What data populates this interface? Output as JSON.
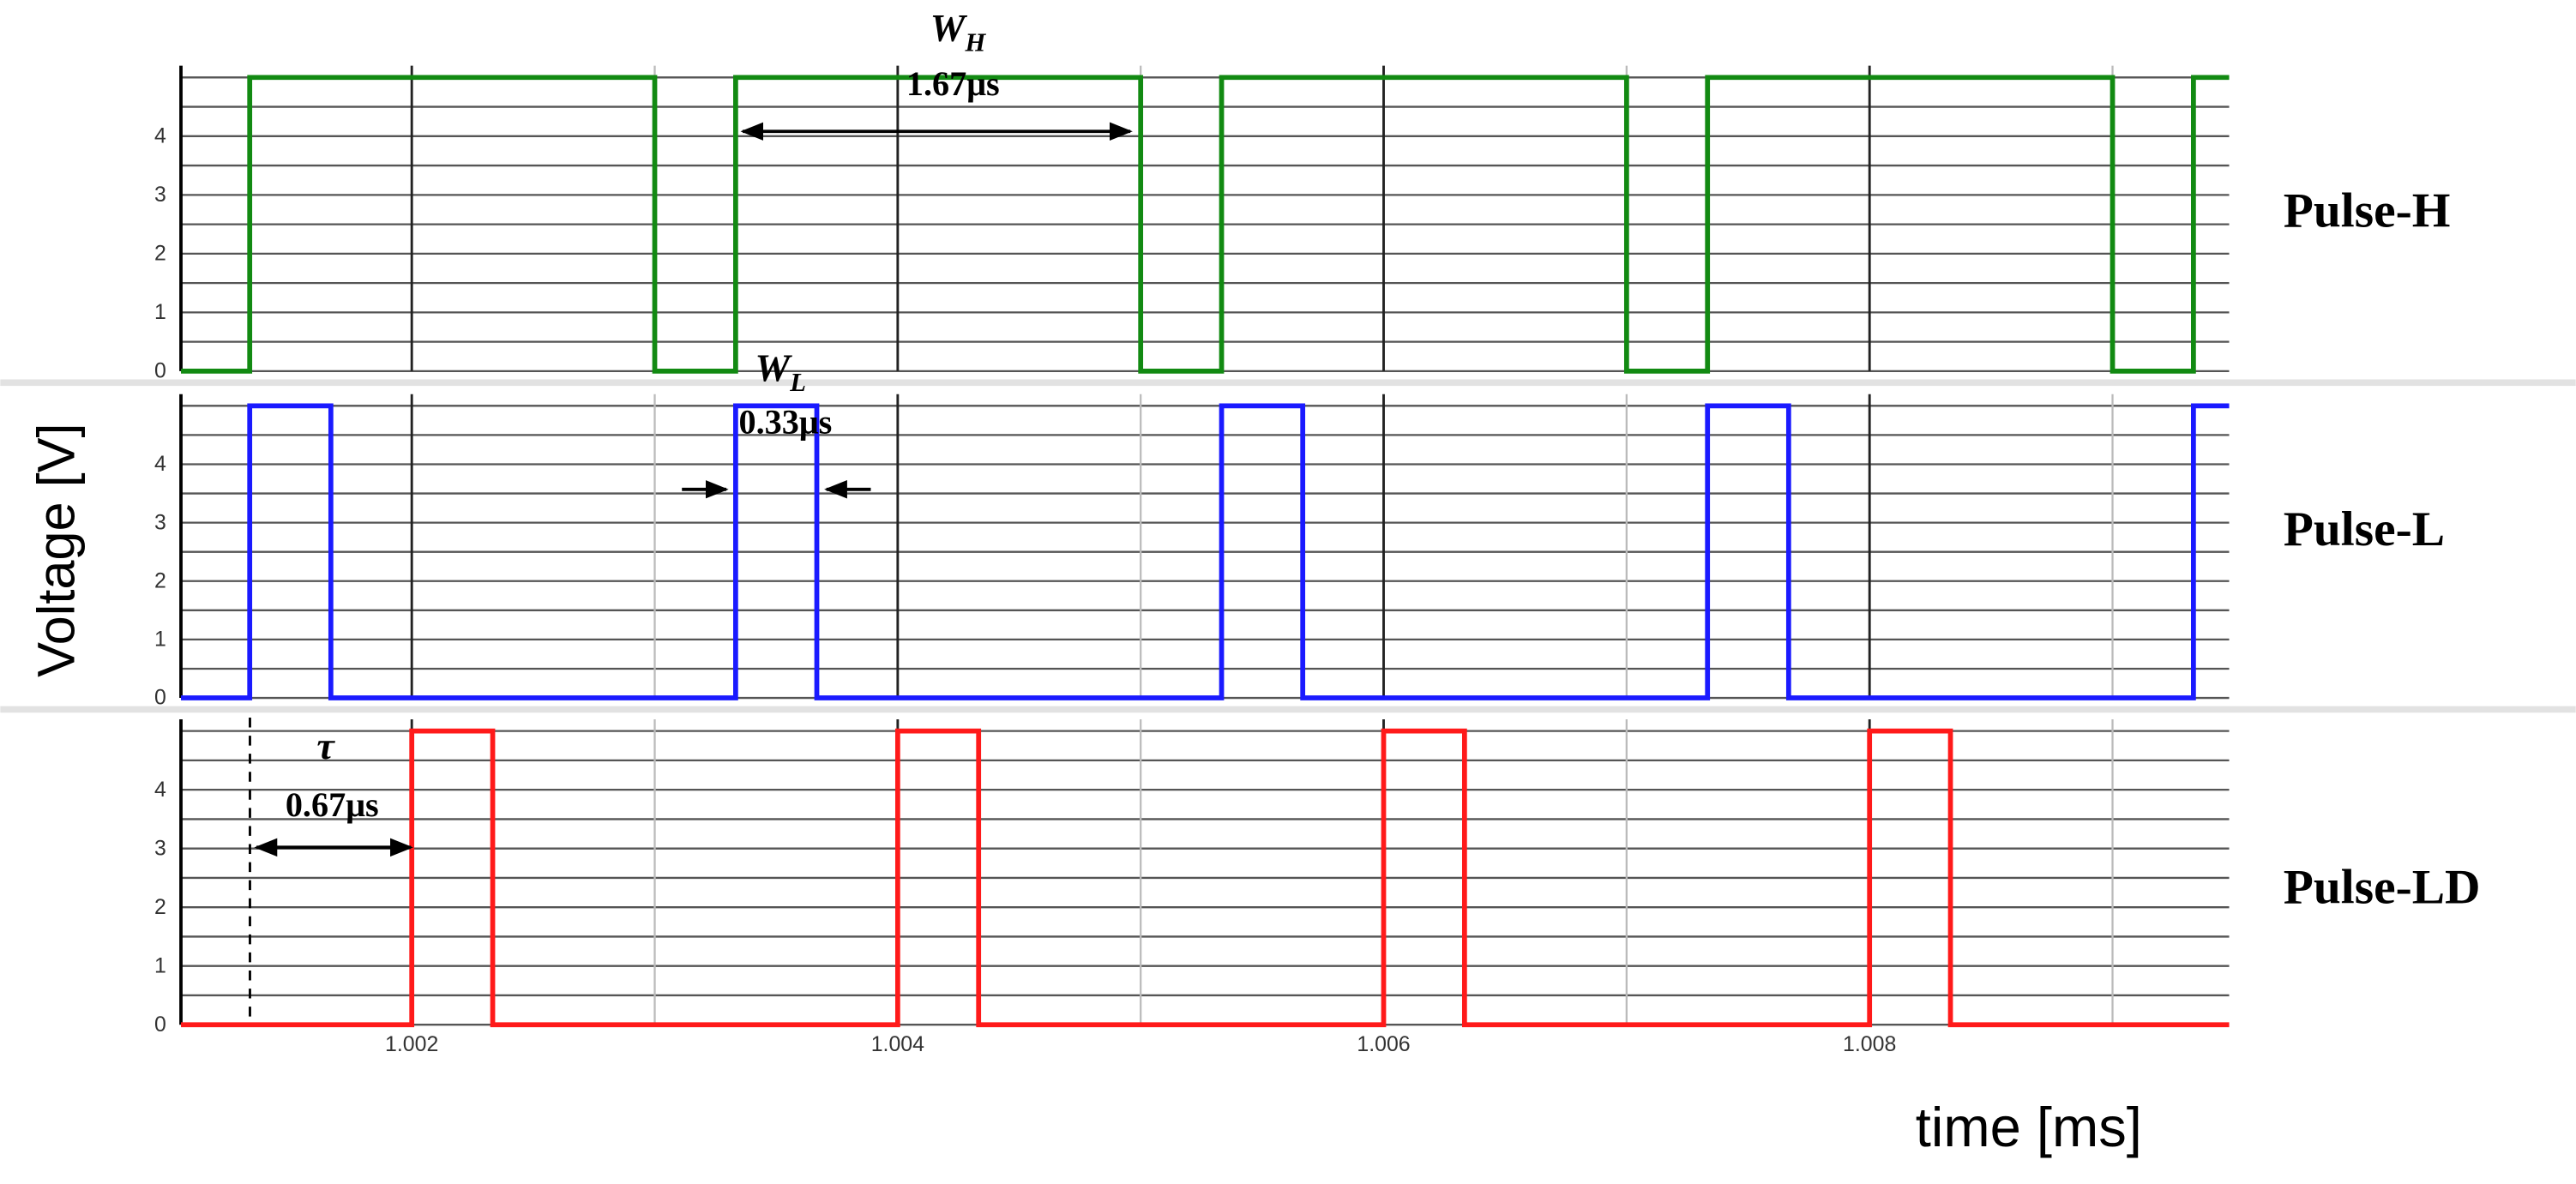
{
  "chart_data": [
    {
      "type": "line",
      "xlim": [
        1.00105,
        1.00948
      ],
      "ylim": [
        0,
        5.2
      ],
      "yticks": [
        0,
        1,
        2,
        3,
        4
      ],
      "minor_yticks": [
        0.5,
        1.5,
        2.5,
        3.5,
        4.5,
        5
      ],
      "xticks": [
        1.002,
        1.004,
        1.006,
        1.008
      ],
      "minor_xticks": [
        1.003,
        1.005,
        1.007,
        1.009
      ],
      "show_xtick_labels": false,
      "x": [
        1.00105,
        1.001333,
        1.001333,
        1.003,
        1.003,
        1.003333,
        1.003333,
        1.005,
        1.005,
        1.005333,
        1.005333,
        1.007,
        1.007,
        1.007333,
        1.007333,
        1.009,
        1.009,
        1.009333,
        1.009333,
        1.00948
      ],
      "series": [
        {
          "name": "Pulse-H",
          "color": "#128a12",
          "values": [
            0,
            0,
            5,
            5,
            0,
            0,
            5,
            5,
            0,
            0,
            5,
            5,
            0,
            0,
            5,
            5,
            0,
            0,
            5,
            5
          ]
        }
      ],
      "annotations": [
        {
          "text": "W",
          "sub": "H"
        },
        {
          "text": "1.67μs"
        }
      ]
    },
    {
      "type": "line",
      "xlim": [
        1.00105,
        1.00948
      ],
      "ylim": [
        0,
        5.2
      ],
      "yticks": [
        0,
        1,
        2,
        3,
        4
      ],
      "minor_yticks": [
        0.5,
        1.5,
        2.5,
        3.5,
        4.5,
        5
      ],
      "xticks": [
        1.002,
        1.004,
        1.006,
        1.008
      ],
      "minor_xticks": [
        1.003,
        1.005,
        1.007,
        1.009
      ],
      "show_xtick_labels": false,
      "ylabel": "Voltage [V]",
      "x": [
        1.00105,
        1.001333,
        1.001333,
        1.001667,
        1.001667,
        1.003333,
        1.003333,
        1.003667,
        1.003667,
        1.005333,
        1.005333,
        1.005667,
        1.005667,
        1.007333,
        1.007333,
        1.007667,
        1.007667,
        1.009333,
        1.009333,
        1.00948
      ],
      "series": [
        {
          "name": "Pulse-L",
          "color": "#1a1aff",
          "values": [
            0,
            0,
            5,
            5,
            0,
            0,
            5,
            5,
            0,
            0,
            5,
            5,
            0,
            0,
            5,
            5,
            0,
            0,
            5,
            5
          ]
        }
      ],
      "annotations": [
        {
          "text": "W",
          "sub": "L"
        },
        {
          "text": "0.33μs"
        }
      ]
    },
    {
      "type": "line",
      "xlim": [
        1.00105,
        1.00948
      ],
      "ylim": [
        0,
        5.2
      ],
      "yticks": [
        0,
        1,
        2,
        3,
        4
      ],
      "minor_yticks": [
        0.5,
        1.5,
        2.5,
        3.5,
        4.5,
        5
      ],
      "xticks": [
        1.002,
        1.004,
        1.006,
        1.008
      ],
      "minor_xticks": [
        1.003,
        1.005,
        1.007,
        1.009
      ],
      "show_xtick_labels": true,
      "xlabel": "time [ms]",
      "x": [
        1.00105,
        1.002,
        1.002,
        1.002333,
        1.002333,
        1.004,
        1.004,
        1.004333,
        1.004333,
        1.006,
        1.006,
        1.006333,
        1.006333,
        1.008,
        1.008,
        1.008333,
        1.008333,
        1.00948
      ],
      "series": [
        {
          "name": "Pulse-LD",
          "color": "#ff1a1a",
          "values": [
            0,
            0,
            5,
            5,
            0,
            0,
            5,
            5,
            0,
            0,
            5,
            5,
            0,
            0,
            5,
            5,
            0,
            0
          ]
        }
      ],
      "annotations": [
        {
          "text": "τ"
        },
        {
          "text": "0.67μs"
        }
      ]
    }
  ]
}
